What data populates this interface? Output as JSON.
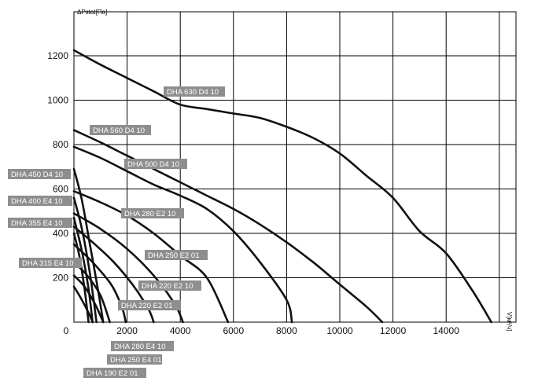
{
  "chart_data": {
    "type": "line",
    "title": "",
    "xlabel": "V[м³/ч]",
    "ylabel": "ΔPstat[Па]",
    "xlim": [
      0,
      16000
    ],
    "ylim": [
      0,
      1380
    ],
    "grid": true,
    "x_ticks": [
      "0",
      "2000",
      "4000",
      "6000",
      "8000",
      "10000",
      "12000",
      "14000"
    ],
    "y_ticks": [
      "200",
      "400",
      "600",
      "800",
      "1000",
      "1200"
    ],
    "series": [
      {
        "name": "DHA 630 D4 10",
        "points": [
          [
            0,
            1225
          ],
          [
            1000,
            1160
          ],
          [
            2000,
            1100
          ],
          [
            3000,
            1040
          ],
          [
            4000,
            980
          ],
          [
            5000,
            960
          ],
          [
            6000,
            940
          ],
          [
            7000,
            920
          ],
          [
            8000,
            880
          ],
          [
            9000,
            830
          ],
          [
            10000,
            760
          ],
          [
            11000,
            660
          ],
          [
            12000,
            560
          ],
          [
            13000,
            410
          ],
          [
            14000,
            310
          ],
          [
            15000,
            140
          ],
          [
            15700,
            0
          ]
        ]
      },
      {
        "name": "DHA 560 D4 10",
        "points": [
          [
            0,
            865
          ],
          [
            1000,
            810
          ],
          [
            2000,
            750
          ],
          [
            3000,
            690
          ],
          [
            4000,
            630
          ],
          [
            5000,
            570
          ],
          [
            6000,
            510
          ],
          [
            7000,
            440
          ],
          [
            8000,
            360
          ],
          [
            9000,
            270
          ],
          [
            10000,
            170
          ],
          [
            11000,
            70
          ],
          [
            11600,
            0
          ]
        ]
      },
      {
        "name": "DHA 500 D4 10",
        "points": [
          [
            0,
            790
          ],
          [
            1000,
            740
          ],
          [
            2000,
            680
          ],
          [
            3000,
            620
          ],
          [
            4000,
            570
          ],
          [
            5000,
            510
          ],
          [
            6000,
            410
          ],
          [
            7000,
            270
          ],
          [
            8000,
            100
          ],
          [
            8200,
            0
          ]
        ]
      },
      {
        "name": "DHA 450 D4 10",
        "points": [
          [
            0,
            590
          ],
          [
            1000,
            540
          ],
          [
            2000,
            480
          ],
          [
            3000,
            400
          ],
          [
            4000,
            300
          ],
          [
            5000,
            200
          ],
          [
            5800,
            0
          ]
        ]
      },
      {
        "name": "DHA 400 E4 10",
        "points": [
          [
            0,
            490
          ],
          [
            1000,
            420
          ],
          [
            2000,
            330
          ],
          [
            3000,
            210
          ],
          [
            3800,
            80
          ],
          [
            4100,
            0
          ]
        ]
      },
      {
        "name": "DHA 355 E4 10",
        "points": [
          [
            0,
            430
          ],
          [
            700,
            360
          ],
          [
            1500,
            270
          ],
          [
            2200,
            170
          ],
          [
            2800,
            60
          ],
          [
            3000,
            0
          ]
        ]
      },
      {
        "name": "DHA 315 E4 10",
        "points": [
          [
            0,
            350
          ],
          [
            700,
            270
          ],
          [
            1400,
            170
          ],
          [
            1800,
            70
          ],
          [
            1950,
            0
          ]
        ]
      },
      {
        "name": "DHA 280 E2 10",
        "points": [
          [
            0,
            690
          ],
          [
            300,
            550
          ],
          [
            600,
            350
          ],
          [
            900,
            150
          ],
          [
            1100,
            0
          ]
        ]
      },
      {
        "name": "DHA 250 E2 01",
        "points": [
          [
            0,
            560
          ],
          [
            300,
            420
          ],
          [
            600,
            220
          ],
          [
            850,
            0
          ]
        ]
      },
      {
        "name": "DHA 220 E2 10",
        "points": [
          [
            0,
            470
          ],
          [
            300,
            320
          ],
          [
            550,
            150
          ],
          [
            700,
            0
          ]
        ]
      },
      {
        "name": "DHA 220 E2 01",
        "points": [
          [
            0,
            400
          ],
          [
            200,
            300
          ],
          [
            400,
            150
          ],
          [
            550,
            0
          ]
        ]
      },
      {
        "name": "DHA 280 E4 10",
        "points": [
          [
            0,
            270
          ],
          [
            500,
            210
          ],
          [
            1000,
            120
          ],
          [
            1350,
            0
          ]
        ]
      },
      {
        "name": "DHA 250 E4 01",
        "points": [
          [
            0,
            210
          ],
          [
            400,
            160
          ],
          [
            800,
            80
          ],
          [
            1100,
            0
          ]
        ]
      },
      {
        "name": "DHA 190 E2 01",
        "points": [
          [
            0,
            160
          ],
          [
            300,
            100
          ],
          [
            600,
            30
          ],
          [
            700,
            0
          ]
        ]
      }
    ]
  }
}
